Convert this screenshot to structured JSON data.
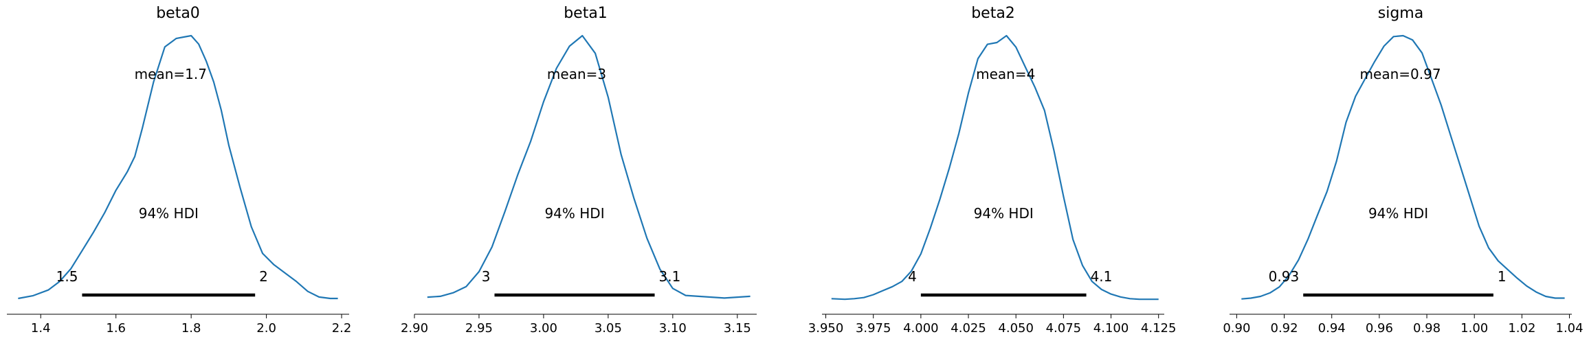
{
  "chart_data": [
    {
      "type": "line",
      "title": "beta0",
      "mean_label": "mean=1.7",
      "hdi_label": "94% HDI",
      "hdi": [
        1.51,
        1.97
      ],
      "hdi_low_label": "1.5",
      "hdi_high_label": "2",
      "xlim": [
        1.31,
        2.22
      ],
      "ticks": [
        1.4,
        1.6,
        1.8,
        2.0,
        2.2
      ],
      "tick_labels": [
        "1.4",
        "1.6",
        "1.8",
        "2.0",
        "2.2"
      ],
      "x": [
        1.34,
        1.38,
        1.42,
        1.45,
        1.48,
        1.51,
        1.54,
        1.57,
        1.6,
        1.63,
        1.65,
        1.67,
        1.7,
        1.73,
        1.76,
        1.78,
        1.8,
        1.82,
        1.84,
        1.86,
        1.88,
        1.9,
        1.93,
        1.96,
        1.99,
        2.02,
        2.05,
        2.08,
        2.11,
        2.14,
        2.17,
        2.19
      ],
      "density": [
        0.01,
        0.03,
        0.07,
        0.13,
        0.22,
        0.35,
        0.48,
        0.62,
        0.78,
        0.91,
        1.02,
        1.22,
        1.55,
        1.8,
        1.86,
        1.87,
        1.88,
        1.82,
        1.7,
        1.55,
        1.35,
        1.1,
        0.8,
        0.52,
        0.33,
        0.25,
        0.19,
        0.13,
        0.06,
        0.02,
        0.01,
        0.01
      ]
    },
    {
      "type": "line",
      "title": "beta1",
      "mean_label": "mean=3",
      "hdi_label": "94% HDI",
      "hdi": [
        2.962,
        3.086
      ],
      "hdi_low_label": "3",
      "hdi_high_label": "3.1",
      "xlim": [
        2.9,
        3.165
      ],
      "ticks": [
        2.9,
        2.95,
        3.0,
        3.05,
        3.1,
        3.15
      ],
      "tick_labels": [
        "2.90",
        "2.95",
        "3.00",
        "3.05",
        "3.10",
        "3.15"
      ],
      "x": [
        2.91,
        2.92,
        2.93,
        2.94,
        2.95,
        2.96,
        2.97,
        2.98,
        2.99,
        3.0,
        3.01,
        3.02,
        3.03,
        3.04,
        3.05,
        3.06,
        3.07,
        3.08,
        3.09,
        3.1,
        3.11,
        3.12,
        3.13,
        3.14,
        3.15,
        3.16
      ],
      "density": [
        0.3,
        0.4,
        0.8,
        1.5,
        3.2,
        6.0,
        10.0,
        14.2,
        18.0,
        22.5,
        26.3,
        28.8,
        30.0,
        28.0,
        23.0,
        16.5,
        11.5,
        7.0,
        3.5,
        1.3,
        0.5,
        0.4,
        0.3,
        0.2,
        0.3,
        0.4
      ]
    },
    {
      "type": "line",
      "title": "beta2",
      "mean_label": "mean=4",
      "hdi_label": "94% HDI",
      "hdi": [
        4.0,
        4.087
      ],
      "hdi_low_label": "4",
      "hdi_high_label": "4.1",
      "xlim": [
        3.948,
        4.128
      ],
      "ticks": [
        3.95,
        3.975,
        4.0,
        4.025,
        4.05,
        4.075,
        4.1,
        4.125
      ],
      "tick_labels": [
        "3.950",
        "3.975",
        "4.000",
        "4.025",
        "4.050",
        "4.075",
        "4.100",
        "4.125"
      ],
      "x": [
        3.953,
        3.96,
        3.965,
        3.97,
        3.975,
        3.98,
        3.985,
        3.99,
        3.995,
        4.0,
        4.005,
        4.01,
        4.015,
        4.02,
        4.025,
        4.03,
        4.035,
        4.04,
        4.045,
        4.05,
        4.055,
        4.06,
        4.065,
        4.07,
        4.075,
        4.08,
        4.085,
        4.09,
        4.095,
        4.1,
        4.105,
        4.11,
        4.115,
        4.12,
        4.125
      ],
      "density": [
        0.2,
        0.1,
        0.2,
        0.4,
        0.9,
        1.6,
        2.3,
        3.2,
        5.0,
        8.0,
        12.5,
        17.5,
        23.0,
        29.0,
        36.0,
        42.0,
        44.5,
        44.8,
        46.0,
        44.0,
        40.5,
        37.0,
        33.0,
        26.0,
        18.0,
        10.5,
        6.0,
        3.2,
        1.8,
        1.0,
        0.5,
        0.2,
        0.1,
        0.1,
        0.1
      ]
    },
    {
      "type": "line",
      "title": "sigma",
      "mean_label": "mean=0.97",
      "hdi_label": "94% HDI",
      "hdi": [
        0.928,
        1.008
      ],
      "hdi_low_label": "0.93",
      "hdi_high_label": "1",
      "xlim": [
        0.897,
        1.041
      ],
      "ticks": [
        0.9,
        0.92,
        0.94,
        0.96,
        0.98,
        1.0,
        1.02,
        1.04
      ],
      "tick_labels": [
        "0.90",
        "0.92",
        "0.94",
        "0.96",
        "0.98",
        "1.00",
        "1.02",
        "1.04"
      ],
      "x": [
        0.902,
        0.906,
        0.91,
        0.914,
        0.918,
        0.922,
        0.926,
        0.93,
        0.934,
        0.938,
        0.942,
        0.946,
        0.95,
        0.954,
        0.958,
        0.962,
        0.966,
        0.97,
        0.974,
        0.978,
        0.982,
        0.986,
        0.99,
        0.994,
        0.998,
        1.002,
        1.006,
        1.01,
        1.014,
        1.018,
        1.022,
        1.026,
        1.03,
        1.034,
        1.038
      ],
      "density": [
        0.1,
        0.2,
        0.4,
        0.8,
        1.5,
        2.8,
        4.6,
        7.0,
        9.8,
        12.5,
        16.0,
        20.5,
        23.5,
        25.5,
        27.5,
        29.3,
        30.4,
        30.5,
        30.0,
        28.5,
        25.5,
        22.5,
        19.0,
        15.5,
        12.0,
        8.5,
        6.0,
        4.5,
        3.5,
        2.5,
        1.6,
        0.9,
        0.4,
        0.2,
        0.2
      ]
    }
  ],
  "colors": {
    "line": "#1f77b4",
    "hdi": "#000000",
    "axis": "#000000"
  }
}
